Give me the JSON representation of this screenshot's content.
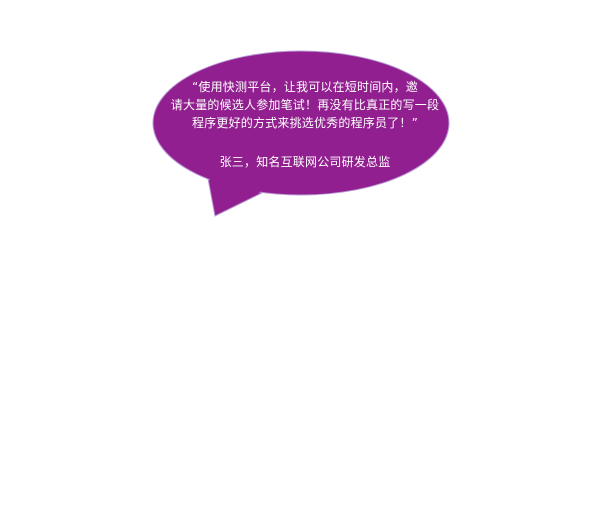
{
  "testimonial": {
    "quote_line_1": "“使用快测平台，让我可以在短时间内，邀",
    "quote_line_2": "请大量的候选人参加笔试！再没有比真正的写一段",
    "quote_line_3": "程序更好的方式来挑选优秀的程序员了！”",
    "author": "张三，知名互联网公司研发总监"
  },
  "colors": {
    "bubble_fill": "#921f8f",
    "bubble_outline": "#b89ad6",
    "text": "#ffffff",
    "background": "#ffffff"
  }
}
